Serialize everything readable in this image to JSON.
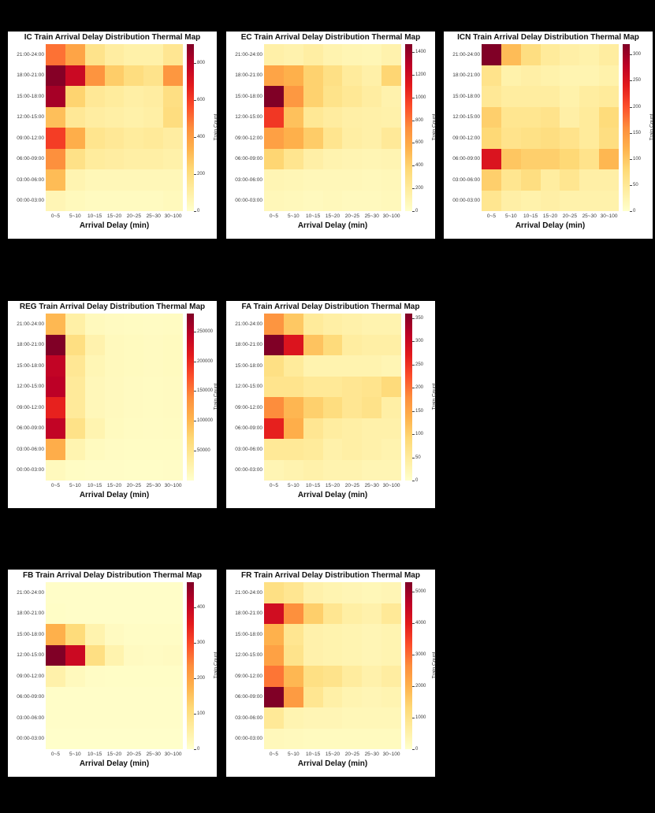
{
  "style": {
    "page_bg": "#000000",
    "panel_bg": "#ffffff",
    "title_color": "#111111",
    "tick_color": "#3a3a3a",
    "colormap": "YlOrRd",
    "colormap_stops": [
      "#ffffcc",
      "#ffeda0",
      "#fed976",
      "#feb24c",
      "#fd8d3c",
      "#fc4e2a",
      "#e31a1c",
      "#bd0026",
      "#800026"
    ]
  },
  "chart_data": [
    {
      "type": "heatmap",
      "id": "ic",
      "title": "IC Train Arrival Delay Distribution Thermal Map",
      "xlabel": "Arrival Delay (min)",
      "colorbar_label": "Train Count",
      "x_categories": [
        "0~5",
        "5~10",
        "10~15",
        "15~20",
        "20~25",
        "25~30",
        "30~100"
      ],
      "y_categories_top_to_bottom": [
        "21:00-24:00",
        "18:00-21:00",
        "15:00-18:00",
        "12:00-15:00",
        "09:00-12:00",
        "06:00-09:00",
        "03:00-06:00",
        "00:00-03:00"
      ],
      "values_top_to_bottom": [
        [
          500,
          380,
          170,
          110,
          90,
          90,
          150
        ],
        [
          890,
          750,
          430,
          260,
          200,
          170,
          420
        ],
        [
          830,
          240,
          140,
          120,
          100,
          110,
          190
        ],
        [
          300,
          140,
          110,
          100,
          90,
          100,
          200
        ],
        [
          600,
          350,
          160,
          140,
          120,
          130,
          110
        ],
        [
          440,
          180,
          120,
          110,
          100,
          100,
          90
        ],
        [
          310,
          70,
          50,
          50,
          50,
          50,
          50
        ],
        [
          60,
          40,
          30,
          30,
          30,
          30,
          40
        ]
      ],
      "vmin": 0,
      "vmax": 900,
      "colorbar_ticks": [
        0,
        200,
        400,
        600,
        800
      ],
      "grid": {
        "row": 0,
        "col": 0
      }
    },
    {
      "type": "heatmap",
      "id": "ec",
      "title": "EC Train Arrival Delay Distribution Thermal Map",
      "xlabel": "Arrival Delay (min)",
      "colorbar_label": "Train Count",
      "x_categories": [
        "0~5",
        "5~10",
        "10~15",
        "15~20",
        "20~25",
        "25~30",
        "30~100"
      ],
      "y_categories_top_to_bottom": [
        "21:00-24:00",
        "18:00-21:00",
        "15:00-18:00",
        "12:00-15:00",
        "09:00-12:00",
        "06:00-09:00",
        "03:00-06:00",
        "00:00-03:00"
      ],
      "values_top_to_bottom": [
        [
          150,
          130,
          170,
          120,
          100,
          90,
          130
        ],
        [
          620,
          560,
          400,
          300,
          200,
          150,
          380
        ],
        [
          1470,
          680,
          400,
          280,
          230,
          180,
          130
        ],
        [
          1000,
          480,
          230,
          190,
          160,
          150,
          140
        ],
        [
          640,
          560,
          430,
          260,
          170,
          150,
          220
        ],
        [
          380,
          260,
          160,
          120,
          110,
          100,
          110
        ],
        [
          100,
          90,
          80,
          80,
          80,
          70,
          80
        ],
        [
          80,
          70,
          60,
          70,
          60,
          60,
          70
        ]
      ],
      "vmin": 0,
      "vmax": 1470,
      "colorbar_ticks": [
        0,
        200,
        400,
        600,
        800,
        1000,
        1200,
        1400
      ],
      "grid": {
        "row": 0,
        "col": 1
      }
    },
    {
      "type": "heatmap",
      "id": "icn",
      "title": "ICN Train Arrival Delay Distribution Thermal Map",
      "xlabel": "Arrival Delay (min)",
      "colorbar_label": "Train Count",
      "x_categories": [
        "0~5",
        "5~10",
        "10~15",
        "15~20",
        "20~25",
        "25~30",
        "30~100"
      ],
      "y_categories_top_to_bottom": [
        "21:00-24:00",
        "18:00-21:00",
        "15:00-18:00",
        "12:00-15:00",
        "09:00-12:00",
        "06:00-09:00",
        "03:00-06:00",
        "00:00-03:00"
      ],
      "values_top_to_bottom": [
        [
          320,
          110,
          70,
          45,
          35,
          30,
          40
        ],
        [
          60,
          30,
          35,
          30,
          25,
          25,
          30
        ],
        [
          50,
          40,
          40,
          40,
          30,
          40,
          45
        ],
        [
          90,
          55,
          55,
          60,
          35,
          45,
          75
        ],
        [
          80,
          60,
          65,
          70,
          60,
          45,
          70
        ],
        [
          250,
          100,
          90,
          90,
          80,
          60,
          115
        ],
        [
          90,
          55,
          70,
          40,
          55,
          35,
          35
        ],
        [
          55,
          35,
          30,
          35,
          30,
          30,
          30
        ]
      ],
      "vmin": 0,
      "vmax": 320,
      "colorbar_ticks": [
        0,
        50,
        100,
        150,
        200,
        250,
        300
      ],
      "grid": {
        "row": 0,
        "col": 2
      }
    },
    {
      "type": "heatmap",
      "id": "reg",
      "title": "REG Train Arrival Delay Distribution Thermal Map",
      "xlabel": "Arrival Delay (min)",
      "colorbar_label": "Train Count",
      "x_categories": [
        "0~5",
        "5~10",
        "10~15",
        "15~20",
        "20~25",
        "25~30",
        "30~100"
      ],
      "y_categories_top_to_bottom": [
        "21:00-24:00",
        "18:00-21:00",
        "15:00-18:00",
        "12:00-15:00",
        "09:00-12:00",
        "06:00-09:00",
        "03:00-06:00",
        "00:00-03:00"
      ],
      "values_top_to_bottom": [
        [
          100000,
          30000,
          12000,
          9000,
          8000,
          7000,
          8000
        ],
        [
          280000,
          60000,
          25000,
          12000,
          10000,
          9000,
          10000
        ],
        [
          240000,
          45000,
          18000,
          12000,
          10000,
          9000,
          10000
        ],
        [
          245000,
          40000,
          15000,
          11000,
          9000,
          8000,
          9000
        ],
        [
          205000,
          40000,
          15000,
          11000,
          9000,
          8000,
          9000
        ],
        [
          240000,
          55000,
          22000,
          10000,
          8000,
          7000,
          8000
        ],
        [
          110000,
          22000,
          10000,
          7000,
          6000,
          6000,
          6000
        ],
        [
          12000,
          6000,
          5000,
          5000,
          4000,
          4000,
          5000
        ]
      ],
      "vmin": 0,
      "vmax": 280000,
      "colorbar_ticks": [
        50000,
        100000,
        150000,
        200000,
        250000
      ],
      "grid": {
        "row": 1,
        "col": 0
      }
    },
    {
      "type": "heatmap",
      "id": "fa",
      "title": "FA Train Arrival Delay Distribution Thermal Map",
      "xlabel": "Arrival Delay (min)",
      "colorbar_label": "Train Count",
      "x_categories": [
        "0~5",
        "5~10",
        "10~15",
        "15~20",
        "20~25",
        "25~30",
        "30~100"
      ],
      "y_categories_top_to_bottom": [
        "21:00-24:00",
        "18:00-21:00",
        "15:00-18:00",
        "12:00-15:00",
        "09:00-12:00",
        "06:00-09:00",
        "03:00-06:00",
        "00:00-03:00"
      ],
      "values_top_to_bottom": [
        [
          170,
          110,
          50,
          40,
          35,
          30,
          30
        ],
        [
          360,
          280,
          115,
          85,
          45,
          40,
          40
        ],
        [
          75,
          50,
          30,
          30,
          30,
          30,
          25
        ],
        [
          65,
          65,
          55,
          55,
          60,
          65,
          85
        ],
        [
          180,
          130,
          100,
          80,
          60,
          70,
          40
        ],
        [
          265,
          140,
          60,
          45,
          40,
          35,
          35
        ],
        [
          55,
          55,
          50,
          35,
          40,
          35,
          30
        ],
        [
          25,
          30,
          35,
          30,
          30,
          25,
          25
        ]
      ],
      "vmin": 0,
      "vmax": 360,
      "colorbar_ticks": [
        0,
        50,
        100,
        150,
        200,
        250,
        300,
        350
      ],
      "grid": {
        "row": 1,
        "col": 1
      }
    },
    {
      "type": "heatmap",
      "id": "fb",
      "title": "FB Train Arrival Delay Distribution Thermal Map",
      "xlabel": "Arrival Delay (min)",
      "colorbar_label": "Train Count",
      "x_categories": [
        "0~5",
        "5~10",
        "10~15",
        "15~20",
        "20~25",
        "25~30",
        "30~100"
      ],
      "y_categories_top_to_bottom": [
        "21:00-24:00",
        "18:00-21:00",
        "15:00-18:00",
        "12:00-15:00",
        "09:00-12:00",
        "06:00-09:00",
        "03:00-06:00",
        "00:00-03:00"
      ],
      "values_top_to_bottom": [
        [
          5,
          5,
          5,
          5,
          5,
          5,
          5
        ],
        [
          8,
          6,
          5,
          5,
          5,
          5,
          5
        ],
        [
          180,
          110,
          40,
          15,
          10,
          10,
          10
        ],
        [
          470,
          390,
          100,
          40,
          15,
          12,
          15
        ],
        [
          45,
          20,
          10,
          8,
          8,
          8,
          8
        ],
        [
          5,
          5,
          5,
          5,
          5,
          5,
          5
        ],
        [
          5,
          5,
          5,
          5,
          5,
          5,
          5
        ],
        [
          3,
          3,
          3,
          3,
          3,
          3,
          3
        ]
      ],
      "vmin": 0,
      "vmax": 470,
      "colorbar_ticks": [
        0,
        100,
        200,
        300,
        400
      ],
      "grid": {
        "row": 2,
        "col": 0
      }
    },
    {
      "type": "heatmap",
      "id": "fr",
      "title": "FR Train Arrival Delay Distribution Thermal Map",
      "xlabel": "Arrival Delay (min)",
      "colorbar_label": "Train Count",
      "x_categories": [
        "0~5",
        "5~10",
        "10~15",
        "15~20",
        "20~25",
        "25~30",
        "30~100"
      ],
      "y_categories_top_to_bottom": [
        "21:00-24:00",
        "18:00-21:00",
        "15:00-18:00",
        "12:00-15:00",
        "09:00-12:00",
        "06:00-09:00",
        "03:00-06:00",
        "00:00-03:00"
      ],
      "values_top_to_bottom": [
        [
          1100,
          900,
          500,
          400,
          350,
          300,
          350
        ],
        [
          4300,
          2600,
          1500,
          900,
          600,
          500,
          800
        ],
        [
          2000,
          900,
          500,
          450,
          400,
          350,
          400
        ],
        [
          2300,
          1000,
          500,
          450,
          400,
          350,
          400
        ],
        [
          2900,
          1900,
          1100,
          1000,
          700,
          500,
          650
        ],
        [
          5300,
          2400,
          900,
          550,
          400,
          350,
          400
        ],
        [
          800,
          400,
          350,
          350,
          300,
          300,
          300
        ],
        [
          250,
          220,
          200,
          200,
          200,
          200,
          200
        ]
      ],
      "vmin": 0,
      "vmax": 5300,
      "colorbar_ticks": [
        0,
        1000,
        2000,
        3000,
        4000,
        5000
      ],
      "grid": {
        "row": 2,
        "col": 1
      }
    }
  ]
}
